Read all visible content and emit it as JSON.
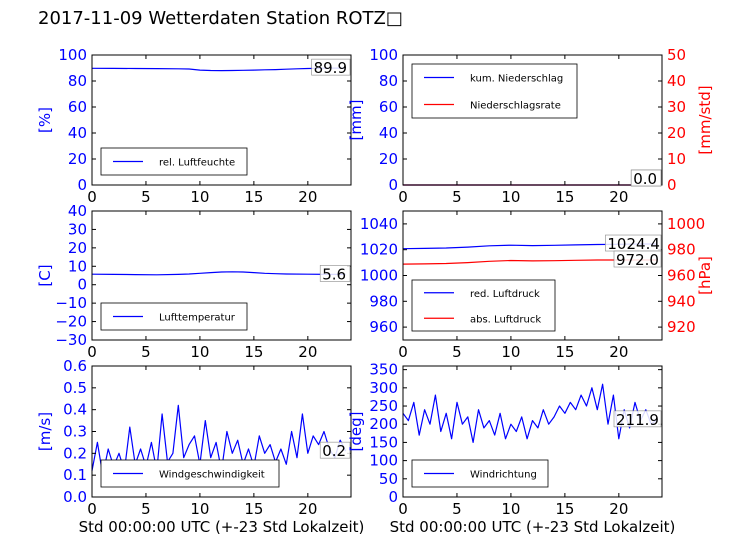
{
  "figure": {
    "title": "2017-11-09 Wetterdaten Station ROTZ□",
    "colors": {
      "left_axis": "#0000ff",
      "right_axis": "#ff0000",
      "frame": "#000000"
    }
  },
  "chart_data": [
    {
      "id": "humidity",
      "type": "line",
      "ylabel": "[%]",
      "xlabel": "",
      "xlim": [
        0,
        24
      ],
      "ylim": [
        0,
        100
      ],
      "xticks": [
        0,
        5,
        10,
        15,
        20
      ],
      "yticks": [
        0,
        20,
        40,
        60,
        80,
        100
      ],
      "grid": false,
      "legend_position": "lower-left",
      "series": [
        {
          "name": "rel. Luftfeuchte",
          "color": "#0000ff",
          "x": [
            0,
            2,
            4,
            6,
            8,
            9,
            10,
            11,
            12,
            13,
            14,
            15,
            16,
            17,
            18,
            19,
            20,
            21,
            22,
            23.5
          ],
          "y": [
            89.8,
            89.7,
            89.6,
            89.5,
            89.4,
            89.2,
            88.4,
            88.1,
            88.0,
            88.1,
            88.2,
            88.4,
            88.6,
            88.8,
            89.1,
            89.4,
            89.6,
            89.8,
            89.9,
            89.9
          ]
        }
      ],
      "current_value": "89.9"
    },
    {
      "id": "precip",
      "type": "line",
      "ylabel": "[mm]",
      "y2label": "[mm/std]",
      "xlabel": "",
      "xlim": [
        0,
        24
      ],
      "ylim": [
        0,
        100
      ],
      "y2lim": [
        0,
        50
      ],
      "xticks": [
        0,
        5,
        10,
        15,
        20
      ],
      "yticks": [
        0,
        20,
        40,
        60,
        80,
        100
      ],
      "y2ticks": [
        0,
        10,
        20,
        30,
        40,
        50
      ],
      "grid": false,
      "legend_position": "upper-left",
      "series": [
        {
          "name": "kum. Niederschlag",
          "color": "#0000ff",
          "axis": "left",
          "x": [
            0,
            23.5
          ],
          "y": [
            0,
            0
          ]
        },
        {
          "name": "Niederschlagsrate",
          "color": "#ff0000",
          "axis": "right",
          "x": [
            0,
            23.5
          ],
          "y": [
            0,
            0
          ]
        }
      ],
      "current_value": "0.0",
      "current_value_2": "0.0"
    },
    {
      "id": "temperature",
      "type": "line",
      "ylabel": "[C]",
      "xlabel": "",
      "xlim": [
        0,
        24
      ],
      "ylim": [
        -30,
        40
      ],
      "xticks": [
        0,
        5,
        10,
        15,
        20
      ],
      "yticks": [
        -30,
        -20,
        -10,
        0,
        10,
        20,
        30,
        40
      ],
      "grid": false,
      "legend_position": "lower-left",
      "series": [
        {
          "name": "Lufttemperatur",
          "color": "#0000ff",
          "x": [
            0,
            2,
            4,
            6,
            8,
            9,
            10,
            11,
            12,
            13,
            14,
            15,
            16,
            17,
            18,
            20,
            22,
            23.5
          ],
          "y": [
            5.7,
            5.6,
            5.5,
            5.4,
            5.6,
            5.8,
            6.2,
            6.6,
            6.9,
            7.0,
            6.9,
            6.6,
            6.2,
            6.0,
            5.8,
            5.7,
            5.6,
            5.6
          ]
        }
      ],
      "current_value": "5.6"
    },
    {
      "id": "pressure",
      "type": "line",
      "ylabel": "",
      "y2label": "[hPa]",
      "xlabel": "",
      "xlim": [
        0,
        24
      ],
      "ylim": [
        950,
        1050
      ],
      "y2lim": [
        910,
        1010
      ],
      "xticks": [
        0,
        5,
        10,
        15,
        20
      ],
      "yticks": [
        960,
        980,
        1000,
        1020,
        1040
      ],
      "y2ticks": [
        920,
        940,
        960,
        980,
        1000
      ],
      "grid": false,
      "legend_position": "lower-left",
      "series": [
        {
          "name": "red. Luftdruck",
          "color": "#0000ff",
          "axis": "left",
          "x": [
            0,
            2,
            4,
            6,
            8,
            10,
            12,
            14,
            16,
            18,
            20,
            22,
            23.5
          ],
          "y": [
            1020.8,
            1021.0,
            1021.3,
            1022.0,
            1023.0,
            1023.5,
            1023.2,
            1023.4,
            1023.7,
            1024.0,
            1024.2,
            1024.4,
            1024.4
          ]
        },
        {
          "name": "abs. Luftdruck",
          "color": "#ff0000",
          "axis": "right",
          "x": [
            0,
            2,
            4,
            6,
            8,
            10,
            12,
            14,
            16,
            18,
            20,
            22,
            23.5
          ],
          "y": [
            968.8,
            969.0,
            969.3,
            970.0,
            971.0,
            971.6,
            971.3,
            971.5,
            971.8,
            972.0,
            972.0,
            972.0,
            972.0
          ]
        }
      ],
      "current_value": "1024.4",
      "current_value_2": "972.0"
    },
    {
      "id": "wind_speed",
      "type": "line",
      "ylabel": "[m/s]",
      "xlabel": "Std 00:00:00 UTC (+-23 Std Lokalzeit)",
      "xlim": [
        0,
        24
      ],
      "ylim": [
        0,
        0.6
      ],
      "xticks": [
        0,
        5,
        10,
        15,
        20
      ],
      "yticks": [
        0.0,
        0.1,
        0.2,
        0.3,
        0.4,
        0.5,
        0.6
      ],
      "grid": false,
      "legend_position": "lower-left",
      "series": [
        {
          "name": "Windgeschwindigkeit",
          "color": "#0000ff",
          "x": [
            0,
            0.5,
            1,
            1.5,
            2,
            2.5,
            3,
            3.5,
            4,
            4.5,
            5,
            5.5,
            6,
            6.5,
            7,
            7.5,
            8,
            8.5,
            9,
            9.5,
            10,
            10.5,
            11,
            11.5,
            12,
            12.5,
            13,
            13.5,
            14,
            14.5,
            15,
            15.5,
            16,
            16.5,
            17,
            17.5,
            18,
            18.5,
            19,
            19.5,
            20,
            20.5,
            21,
            21.5,
            22,
            22.5,
            23,
            23.5
          ],
          "y": [
            0.12,
            0.25,
            0.1,
            0.22,
            0.14,
            0.2,
            0.12,
            0.32,
            0.15,
            0.22,
            0.14,
            0.25,
            0.12,
            0.38,
            0.16,
            0.2,
            0.42,
            0.18,
            0.24,
            0.28,
            0.15,
            0.35,
            0.18,
            0.25,
            0.12,
            0.3,
            0.2,
            0.26,
            0.15,
            0.22,
            0.14,
            0.28,
            0.2,
            0.24,
            0.16,
            0.22,
            0.15,
            0.3,
            0.18,
            0.38,
            0.2,
            0.28,
            0.24,
            0.3,
            0.22,
            0.18,
            0.26,
            0.21
          ]
        }
      ],
      "current_value": "0.2"
    },
    {
      "id": "wind_direction",
      "type": "line",
      "ylabel": "[deg]",
      "xlabel": "Std 00:00:00 UTC (+-23 Std Lokalzeit)",
      "xlim": [
        0,
        24
      ],
      "ylim": [
        0,
        360
      ],
      "xticks": [
        0,
        5,
        10,
        15,
        20
      ],
      "yticks": [
        0,
        50,
        100,
        150,
        200,
        250,
        300,
        350
      ],
      "grid": false,
      "legend_position": "lower-left",
      "series": [
        {
          "name": "Windrichtung",
          "color": "#0000ff",
          "x": [
            0,
            0.5,
            1,
            1.5,
            2,
            2.5,
            3,
            3.5,
            4,
            4.5,
            5,
            5.5,
            6,
            6.5,
            7,
            7.5,
            8,
            8.5,
            9,
            9.5,
            10,
            10.5,
            11,
            11.5,
            12,
            12.5,
            13,
            13.5,
            14,
            14.5,
            15,
            15.5,
            16,
            16.5,
            17,
            17.5,
            18,
            18.5,
            19,
            19.5,
            20,
            20.5,
            21,
            21.5,
            22,
            22.5,
            23,
            23.5
          ],
          "y": [
            230,
            210,
            260,
            170,
            240,
            200,
            280,
            180,
            230,
            160,
            260,
            200,
            220,
            150,
            240,
            190,
            210,
            170,
            230,
            160,
            200,
            180,
            220,
            160,
            210,
            190,
            240,
            200,
            220,
            250,
            230,
            260,
            240,
            280,
            250,
            300,
            240,
            310,
            200,
            280,
            160,
            240,
            190,
            260,
            210,
            240,
            200,
            212
          ]
        }
      ],
      "current_value": "211.9"
    }
  ]
}
